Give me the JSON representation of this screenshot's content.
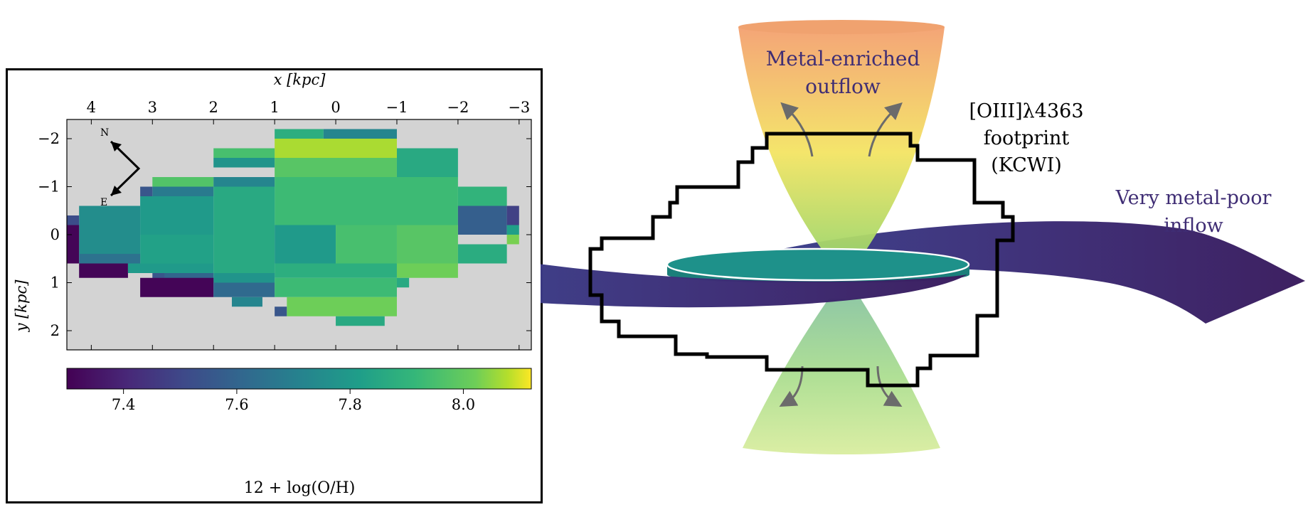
{
  "map": {
    "x_axis_label": "x [kpc]",
    "y_axis_label": "y [kpc]",
    "x_ticks": [
      "4",
      "3",
      "2",
      "1",
      "0",
      "−1",
      "−2",
      "−3"
    ],
    "y_ticks": [
      "−2",
      "−1",
      "0",
      "1",
      "2"
    ],
    "compass": {
      "north": "N",
      "east": "E"
    },
    "colorbar_label": "12 + log(O/H)",
    "colorbar_ticks": [
      "7.4",
      "7.6",
      "7.8",
      "8.0"
    ],
    "background_color": "#d3d3d3",
    "colormap": "viridis"
  },
  "chart_data": {
    "type": "heatmap",
    "quantity": "12 + log(O/H)",
    "xlim": [
      4.4,
      -3.2
    ],
    "ylim": [
      2.4,
      -2.4
    ],
    "clim": [
      7.3,
      8.12
    ],
    "pixel_size_kpc": 0.2,
    "regions": [
      {
        "x": [
          1.0,
          0.2
        ],
        "y": [
          -2.2,
          -2.0
        ],
        "value": 7.88
      },
      {
        "x": [
          0.2,
          -1.0
        ],
        "y": [
          -2.2,
          -2.0
        ],
        "value": 7.72
      },
      {
        "x": [
          1.0,
          -1.0
        ],
        "y": [
          -2.0,
          -1.6
        ],
        "value": 8.07
      },
      {
        "x": [
          2.0,
          1.0
        ],
        "y": [
          -1.8,
          -1.6
        ],
        "value": 7.95
      },
      {
        "x": [
          -1.0,
          -2.0
        ],
        "y": [
          -1.8,
          -1.2
        ],
        "value": 7.86
      },
      {
        "x": [
          2.0,
          1.0
        ],
        "y": [
          -1.6,
          -1.4
        ],
        "value": 7.78
      },
      {
        "x": [
          1.0,
          -1.0
        ],
        "y": [
          -1.6,
          -1.2
        ],
        "value": 7.98
      },
      {
        "x": [
          3.0,
          2.0
        ],
        "y": [
          -1.2,
          -1.0
        ],
        "value": 7.97
      },
      {
        "x": [
          2.0,
          1.0
        ],
        "y": [
          -1.2,
          -1.0
        ],
        "value": 7.72
      },
      {
        "x": [
          1.0,
          -2.0
        ],
        "y": [
          -1.2,
          -0.2
        ],
        "value": 7.93
      },
      {
        "x": [
          3.0,
          2.0
        ],
        "y": [
          -1.0,
          -0.8
        ],
        "value": 7.68
      },
      {
        "x": [
          3.2,
          3.0
        ],
        "y": [
          -1.0,
          -0.8
        ],
        "value": 7.55
      },
      {
        "x": [
          2.0,
          1.0
        ],
        "y": [
          -1.0,
          0.8
        ],
        "value": 7.86
      },
      {
        "x": [
          3.2,
          2.0
        ],
        "y": [
          -0.8,
          0.0
        ],
        "value": 7.8
      },
      {
        "x": [
          -2.0,
          -2.8
        ],
        "y": [
          -1.0,
          -0.6
        ],
        "value": 7.9
      },
      {
        "x": [
          4.2,
          3.2
        ],
        "y": [
          -0.6,
          0.4
        ],
        "value": 7.75
      },
      {
        "x": [
          4.4,
          4.2
        ],
        "y": [
          -0.4,
          -0.2
        ],
        "value": 7.52
      },
      {
        "x": [
          -2.0,
          -2.8
        ],
        "y": [
          -0.6,
          0.0
        ],
        "value": 7.58
      },
      {
        "x": [
          -2.8,
          -3.0
        ],
        "y": [
          -0.6,
          -0.2
        ],
        "value": 7.48
      },
      {
        "x": [
          1.0,
          0.0
        ],
        "y": [
          -0.2,
          0.6
        ],
        "value": 7.8
      },
      {
        "x": [
          0.0,
          -1.0
        ],
        "y": [
          -0.2,
          0.6
        ],
        "value": 7.95
      },
      {
        "x": [
          -1.0,
          -2.0
        ],
        "y": [
          -0.2,
          0.6
        ],
        "value": 7.98
      },
      {
        "x": [
          -2.8,
          -3.0
        ],
        "y": [
          -0.2,
          0.0
        ],
        "value": 7.82
      },
      {
        "x": [
          -2.8,
          -3.0
        ],
        "y": [
          0.0,
          0.2
        ],
        "value": 8.03
      },
      {
        "x": [
          4.4,
          4.2
        ],
        "y": [
          -0.2,
          0.6
        ],
        "value": 7.31
      },
      {
        "x": [
          3.2,
          2.0
        ],
        "y": [
          0.0,
          0.6
        ],
        "value": 7.83
      },
      {
        "x": [
          -2.0,
          -2.8
        ],
        "y": [
          0.2,
          0.6
        ],
        "value": 7.87
      },
      {
        "x": [
          4.2,
          3.2
        ],
        "y": [
          0.4,
          0.6
        ],
        "value": 7.65
      },
      {
        "x": [
          4.2,
          3.4
        ],
        "y": [
          0.6,
          0.9
        ],
        "value": 7.31
      },
      {
        "x": [
          3.4,
          2.0
        ],
        "y": [
          0.6,
          0.8
        ],
        "value": 7.8
      },
      {
        "x": [
          1.0,
          -1.0
        ],
        "y": [
          0.6,
          0.9
        ],
        "value": 7.88
      },
      {
        "x": [
          -1.0,
          -2.0
        ],
        "y": [
          0.6,
          0.9
        ],
        "value": 8.02
      },
      {
        "x": [
          3.0,
          2.8
        ],
        "y": [
          0.8,
          1.0
        ],
        "value": 7.55
      },
      {
        "x": [
          2.8,
          2.0
        ],
        "y": [
          0.8,
          1.0
        ],
        "value": 7.6
      },
      {
        "x": [
          2.0,
          1.0
        ],
        "y": [
          0.8,
          1.0
        ],
        "value": 7.78
      },
      {
        "x": [
          3.2,
          2.0
        ],
        "y": [
          0.9,
          1.3
        ],
        "value": 7.31
      },
      {
        "x": [
          2.0,
          1.0
        ],
        "y": [
          1.0,
          1.3
        ],
        "value": 7.62
      },
      {
        "x": [
          1.0,
          -1.0
        ],
        "y": [
          0.9,
          1.3
        ],
        "value": 7.93
      },
      {
        "x": [
          -1.0,
          -1.2
        ],
        "y": [
          0.9,
          1.1
        ],
        "value": 7.86
      },
      {
        "x": [
          1.7,
          1.2
        ],
        "y": [
          1.3,
          1.5
        ],
        "value": 7.72
      },
      {
        "x": [
          1.0,
          0.8
        ],
        "y": [
          1.5,
          1.7
        ],
        "value": 7.55
      },
      {
        "x": [
          0.8,
          -1.0
        ],
        "y": [
          1.3,
          1.7
        ],
        "value": 8.02
      },
      {
        "x": [
          0.0,
          -0.8
        ],
        "y": [
          1.7,
          1.9
        ],
        "value": 7.86
      }
    ]
  },
  "diagram": {
    "outflow_label": [
      "Metal-enriched",
      "outflow"
    ],
    "footprint_label": [
      "[OIII]λ4363",
      "footprint",
      "(KCWI)"
    ],
    "inflow_label": [
      "Very metal-poor",
      "inflow"
    ],
    "colors": {
      "label_purple": "#3f2d74",
      "inflow_dark": "#3a1c5e",
      "inflow_mid": "#3b3f8a",
      "disk_teal": "#1d8d86",
      "cone_top": "#f4a070",
      "cone_mid": "#f3e463",
      "cone_bottom": "#9fd66a"
    }
  }
}
